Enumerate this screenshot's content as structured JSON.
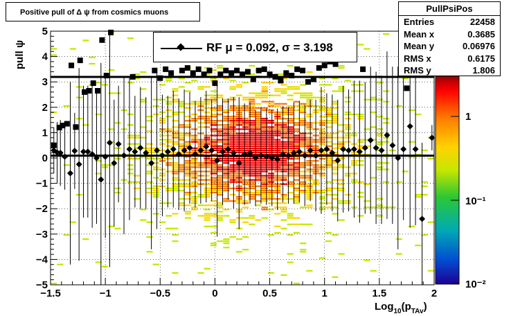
{
  "title": "Positive pull of Δ ψ from cosmics muons",
  "stats": {
    "name": "PullPsiPos",
    "rows": [
      {
        "label": "Entries",
        "value": "22458"
      },
      {
        "label": "Mean x",
        "value": "0.3685"
      },
      {
        "label": "Mean y",
        "value": "0.06976"
      },
      {
        "label": "RMS x",
        "value": "0.6175"
      },
      {
        "label": "RMS y",
        "value": "1.806"
      }
    ]
  },
  "legend": {
    "text": "RF μ =  0.092, σ =   3.198"
  },
  "colorbar": {
    "tick_labels": [
      "1",
      "10⁻¹",
      "10⁻²"
    ],
    "colors": [
      "#6e0000",
      "#ff0000",
      "#ff7a00",
      "#ffd200",
      "#c8e600",
      "#2dc832",
      "#00aab4",
      "#0050d2",
      "#1e0096"
    ]
  },
  "chart_data": {
    "type": "heatmap",
    "xlabel": "Log10(pTAv)",
    "ylabel": "pull ψ",
    "xlim": [
      -1.5,
      2
    ],
    "ylim": [
      -5,
      5
    ],
    "x_ticks": [
      "−1.5",
      "−1",
      "−0.5",
      "0",
      "0.5",
      "1",
      "1.5",
      "2"
    ],
    "y_ticks": [
      "−5",
      "−4",
      "−3",
      "−2",
      "−1",
      "0",
      "1",
      "2",
      "3",
      "4",
      "5"
    ],
    "grid": true,
    "fit_lines": [
      {
        "y": 3.198
      },
      {
        "y": 0.092
      }
    ],
    "rms_points": {
      "marker": "square",
      "points": [
        {
          "x": -1.47,
          "y": 0.5
        },
        {
          "x": -1.42,
          "y": 1.2
        },
        {
          "x": -1.39,
          "y": 1.28
        },
        {
          "x": -1.35,
          "y": 1.35
        },
        {
          "x": -1.31,
          "y": 3.65
        },
        {
          "x": -1.27,
          "y": 1.22
        },
        {
          "x": -1.23,
          "y": 3.85
        },
        {
          "x": -1.19,
          "y": 2.6
        },
        {
          "x": -1.15,
          "y": 2.65
        },
        {
          "x": -1.11,
          "y": 2.95
        },
        {
          "x": -1.07,
          "y": 2.65
        },
        {
          "x": -1.03,
          "y": 4.65
        },
        {
          "x": -0.99,
          "y": 3.25
        },
        {
          "x": -0.95,
          "y": 4.95
        },
        {
          "x": -0.75,
          "y": 3.2
        },
        {
          "x": -0.55,
          "y": 3.45
        },
        {
          "x": -0.5,
          "y": 3.15
        },
        {
          "x": -0.45,
          "y": 3.5
        },
        {
          "x": -0.4,
          "y": 3.35
        },
        {
          "x": -0.3,
          "y": 3.45
        },
        {
          "x": -0.25,
          "y": 3.55
        },
        {
          "x": -0.2,
          "y": 3.35
        },
        {
          "x": -0.15,
          "y": 3.5
        },
        {
          "x": -0.1,
          "y": 3.3
        },
        {
          "x": -0.05,
          "y": 3.45
        },
        {
          "x": 0.0,
          "y": 2.95
        },
        {
          "x": 0.05,
          "y": 3.3
        },
        {
          "x": 0.1,
          "y": 3.45
        },
        {
          "x": 0.15,
          "y": 3.35
        },
        {
          "x": 0.2,
          "y": 3.45
        },
        {
          "x": 0.25,
          "y": 3.3
        },
        {
          "x": 0.3,
          "y": 3.4
        },
        {
          "x": 0.35,
          "y": 3.1
        },
        {
          "x": 0.4,
          "y": 3.45
        },
        {
          "x": 0.45,
          "y": 3.5
        },
        {
          "x": 0.5,
          "y": 3.3
        },
        {
          "x": 0.55,
          "y": 3.2
        },
        {
          "x": 0.6,
          "y": 3.05
        },
        {
          "x": 0.65,
          "y": 3.35
        },
        {
          "x": 0.7,
          "y": 3.25
        },
        {
          "x": 0.75,
          "y": 3.5
        },
        {
          "x": 0.8,
          "y": 3.45
        },
        {
          "x": 0.85,
          "y": 3.0
        },
        {
          "x": 0.9,
          "y": 3.1
        },
        {
          "x": 0.95,
          "y": 3.55
        },
        {
          "x": 1.0,
          "y": 3.65
        },
        {
          "x": 1.05,
          "y": 3.8
        },
        {
          "x": 1.1,
          "y": 3.7
        },
        {
          "x": 1.35,
          "y": 3.5
        },
        {
          "x": 1.75,
          "y": 2.75
        },
        {
          "x": 1.85,
          "y": 4.5
        }
      ]
    },
    "mean_points": {
      "marker": "diamond",
      "points": [
        {
          "x": -1.47,
          "y": 0.3,
          "err": 0.9
        },
        {
          "x": -1.44,
          "y": 0.22,
          "err": 1.2
        },
        {
          "x": -1.41,
          "y": 0.2,
          "err": 1.3
        },
        {
          "x": -1.37,
          "y": 0.05,
          "err": 1.3
        },
        {
          "x": -1.32,
          "y": -0.6,
          "err": 3.6
        },
        {
          "x": -1.28,
          "y": 0.28,
          "err": 1.5
        },
        {
          "x": -1.24,
          "y": -0.25,
          "err": 3.8
        },
        {
          "x": -1.2,
          "y": 0.25,
          "err": 2.6
        },
        {
          "x": -1.16,
          "y": 0.25,
          "err": 2.6
        },
        {
          "x": -1.12,
          "y": 0.15,
          "err": 2.9
        },
        {
          "x": -1.08,
          "y": 0.0,
          "err": 2.6
        },
        {
          "x": -1.04,
          "y": -0.85,
          "err": 4.6
        },
        {
          "x": -1.0,
          "y": 0.05,
          "err": 3.2
        },
        {
          "x": -0.96,
          "y": 0.6,
          "err": 4.9
        },
        {
          "x": -0.92,
          "y": -0.2,
          "err": 2.5
        },
        {
          "x": -0.88,
          "y": 0.55,
          "err": 2.3
        },
        {
          "x": -0.83,
          "y": 0.1,
          "err": 3.1
        },
        {
          "x": -0.78,
          "y": 0.35,
          "err": 2.8
        },
        {
          "x": -0.73,
          "y": 0.25,
          "err": 2.2
        },
        {
          "x": -0.68,
          "y": 0.4,
          "err": 2.4
        },
        {
          "x": -0.63,
          "y": 0.2,
          "err": 2.2
        },
        {
          "x": -0.58,
          "y": -0.2,
          "err": 3.4
        },
        {
          "x": -0.53,
          "y": 0.3,
          "err": 3.1
        },
        {
          "x": -0.48,
          "y": 0.1,
          "err": 2.4
        },
        {
          "x": -0.43,
          "y": 0.25,
          "err": 2.2
        },
        {
          "x": -0.38,
          "y": 0.35,
          "err": 2.3
        },
        {
          "x": -0.33,
          "y": 0.15,
          "err": 2.2
        },
        {
          "x": -0.28,
          "y": 0.3,
          "err": 2.4
        },
        {
          "x": -0.23,
          "y": 0.4,
          "err": 2.2
        },
        {
          "x": -0.18,
          "y": 0.15,
          "err": 2.1
        },
        {
          "x": -0.13,
          "y": 0.3,
          "err": 2.1
        },
        {
          "x": -0.08,
          "y": 0.45,
          "err": 2.2
        },
        {
          "x": -0.03,
          "y": 0.3,
          "err": 2.0
        },
        {
          "x": 0.02,
          "y": -0.1,
          "err": 3.0
        },
        {
          "x": 0.07,
          "y": 0.25,
          "err": 2.1
        },
        {
          "x": 0.12,
          "y": 0.35,
          "err": 2.0
        },
        {
          "x": 0.17,
          "y": 0.2,
          "err": 2.2
        },
        {
          "x": 0.22,
          "y": -0.2,
          "err": 2.6
        },
        {
          "x": 0.27,
          "y": 0.15,
          "err": 2.0
        },
        {
          "x": 0.32,
          "y": 0.2,
          "err": 2.0
        },
        {
          "x": 0.37,
          "y": 0.0,
          "err": 1.9
        },
        {
          "x": 0.42,
          "y": 0.1,
          "err": 1.9
        },
        {
          "x": 0.47,
          "y": 0.05,
          "err": 1.9
        },
        {
          "x": 0.52,
          "y": 0.0,
          "err": 1.9
        },
        {
          "x": 0.57,
          "y": -0.05,
          "err": 2.0
        },
        {
          "x": 0.62,
          "y": 0.15,
          "err": 1.9
        },
        {
          "x": 0.67,
          "y": 0.1,
          "err": 1.9
        },
        {
          "x": 0.72,
          "y": 0.2,
          "err": 2.0
        },
        {
          "x": 0.77,
          "y": 0.25,
          "err": 2.0
        },
        {
          "x": 0.82,
          "y": 0.1,
          "err": 2.0
        },
        {
          "x": 0.87,
          "y": 0.3,
          "err": 2.0
        },
        {
          "x": 0.92,
          "y": 0.1,
          "err": 2.2
        },
        {
          "x": 0.97,
          "y": 0.3,
          "err": 2.5
        },
        {
          "x": 1.02,
          "y": 0.35,
          "err": 2.2
        },
        {
          "x": 1.07,
          "y": 0.2,
          "err": 2.3
        },
        {
          "x": 1.12,
          "y": -0.1,
          "err": 2.4
        },
        {
          "x": 1.17,
          "y": 0.35,
          "err": 2.5
        },
        {
          "x": 1.22,
          "y": 0.3,
          "err": 2.4
        },
        {
          "x": 1.27,
          "y": 0.35,
          "err": 2.7
        },
        {
          "x": 1.32,
          "y": 0.25,
          "err": 2.8
        },
        {
          "x": 1.37,
          "y": 0.4,
          "err": 2.6
        },
        {
          "x": 1.42,
          "y": 0.7,
          "err": 2.9
        },
        {
          "x": 1.47,
          "y": 0.4,
          "err": 3.0
        },
        {
          "x": 1.52,
          "y": 0.3,
          "err": 2.9
        },
        {
          "x": 1.57,
          "y": 0.9,
          "err": 3.3
        },
        {
          "x": 1.62,
          "y": 0.5,
          "err": 3.1
        },
        {
          "x": 1.67,
          "y": 0.0,
          "err": 3.6
        },
        {
          "x": 1.72,
          "y": 0.35,
          "err": 2.8
        },
        {
          "x": 1.78,
          "y": 1.25,
          "err": 4.0
        },
        {
          "x": 1.83,
          "y": 0.35,
          "err": 3.0
        },
        {
          "x": 1.89,
          "y": -2.4,
          "err": 3.0
        },
        {
          "x": 1.98,
          "y": 0.8,
          "err": 0.5
        }
      ]
    }
  }
}
